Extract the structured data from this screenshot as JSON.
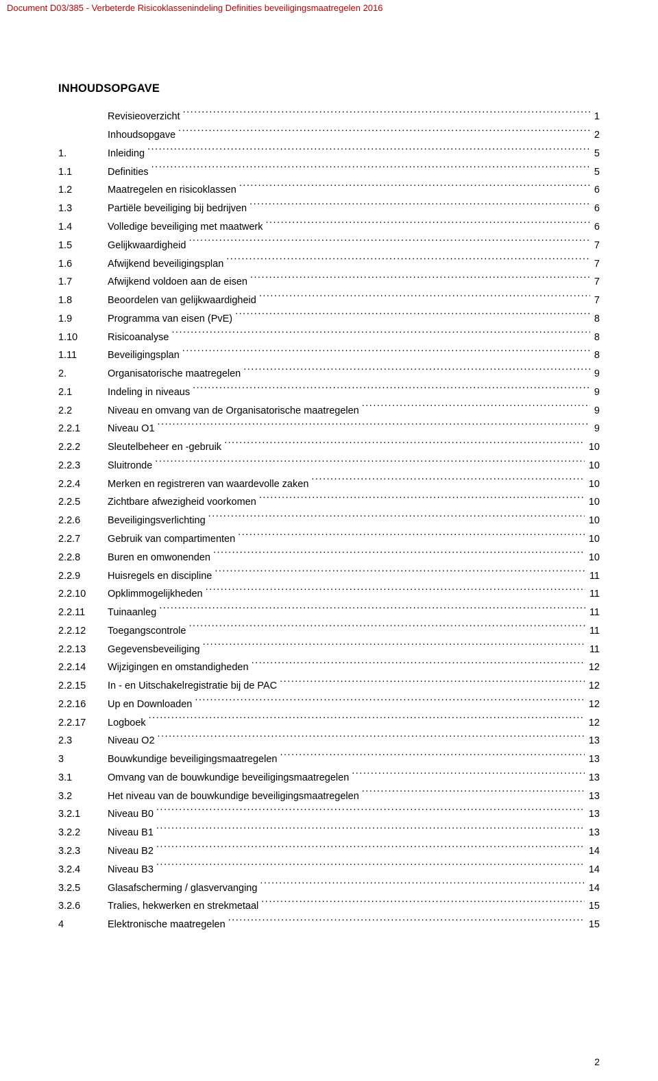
{
  "doc": {
    "header_text": "Document D03/385 - Verbeterde Risicoklassenindeling Definities beveiligingsmaatregelen 2016",
    "header_color": "#c00000",
    "page_number": "2",
    "main_heading": "INHOUDSOPGAVE",
    "text_color": "#000000",
    "background_color": "#ffffff",
    "font_family": "Verdana",
    "body_font_size_pt": 11,
    "line_height": 1.75
  },
  "toc": {
    "entries": [
      {
        "num": "",
        "label": "Revisieoverzicht",
        "page": "1"
      },
      {
        "num": "",
        "label": "Inhoudsopgave",
        "page": "2"
      },
      {
        "num": "1.",
        "label": "Inleiding",
        "page": "5"
      },
      {
        "num": "1.1",
        "label": "Definities",
        "page": "5"
      },
      {
        "num": "1.2",
        "label": "Maatregelen en risicoklassen",
        "page": "6"
      },
      {
        "num": "1.3",
        "label": "Partiële beveiliging bij bedrijven",
        "page": "6"
      },
      {
        "num": "1.4",
        "label": "Volledige beveiliging met maatwerk",
        "page": "6"
      },
      {
        "num": "1.5",
        "label": "Gelijkwaardigheid",
        "page": "7"
      },
      {
        "num": "1.6",
        "label": "Afwijkend beveiligingsplan",
        "page": "7"
      },
      {
        "num": "1.7",
        "label": "Afwijkend voldoen aan de eisen",
        "page": "7"
      },
      {
        "num": "1.8",
        "label": "Beoordelen van gelijkwaardigheid",
        "page": "7"
      },
      {
        "num": "1.9",
        "label": "Programma van eisen (PvE)",
        "page": "8"
      },
      {
        "num": "1.10",
        "label": "Risicoanalyse",
        "page": "8"
      },
      {
        "num": "1.11",
        "label": "Beveiligingsplan",
        "page": "8"
      },
      {
        "num": "2.",
        "label": "Organisatorische maatregelen",
        "page": "9"
      },
      {
        "num": "2.1",
        "label": "Indeling in niveaus",
        "page": "9"
      },
      {
        "num": "2.2",
        "label": "Niveau en omvang van de Organisatorische maatregelen",
        "page": "9"
      },
      {
        "num": "2.2.1",
        "label": "Niveau O1",
        "page": "9"
      },
      {
        "num": "2.2.2",
        "label": "Sleutelbeheer en -gebruik",
        "page": "10"
      },
      {
        "num": "2.2.3",
        "label": "Sluitronde",
        "page": "10"
      },
      {
        "num": "2.2.4",
        "label": "Merken en registreren van waardevolle zaken",
        "page": "10"
      },
      {
        "num": "2.2.5",
        "label": "Zichtbare afwezigheid voorkomen",
        "page": "10"
      },
      {
        "num": "2.2.6",
        "label": "Beveiligingsverlichting",
        "page": "10"
      },
      {
        "num": "2.2.7",
        "label": "Gebruik van compartimenten",
        "page": "10"
      },
      {
        "num": "2.2.8",
        "label": "Buren en omwonenden",
        "page": "10"
      },
      {
        "num": "2.2.9",
        "label": "Huisregels en discipline",
        "page": "11"
      },
      {
        "num": "2.2.10",
        "label": "Opklimmogelijkheden",
        "page": "11"
      },
      {
        "num": "2.2.11",
        "label": "Tuinaanleg",
        "page": "11"
      },
      {
        "num": "2.2.12",
        "label": "Toegangscontrole",
        "page": "11"
      },
      {
        "num": "2.2.13",
        "label": "Gegevensbeveiliging",
        "page": "11"
      },
      {
        "num": "2.2.14",
        "label": "Wijzigingen en omstandigheden",
        "page": "12"
      },
      {
        "num": "2.2.15",
        "label": "In - en Uitschakelregistratie bij de PAC",
        "page": "12"
      },
      {
        "num": "2.2.16",
        "label": "Up en Downloaden",
        "page": "12"
      },
      {
        "num": "2.2.17",
        "label": "Logboek",
        "page": "12"
      },
      {
        "num": "2.3",
        "label": "Niveau O2",
        "page": "13"
      },
      {
        "num": "3",
        "label": "Bouwkundige beveiligingsmaatregelen",
        "page": "13"
      },
      {
        "num": "3.1",
        "label": "Omvang van de bouwkundige beveiligingsmaatregelen",
        "page": "13"
      },
      {
        "num": "3.2",
        "label": "Het niveau van de bouwkundige beveiligingsmaatregelen",
        "page": "13"
      },
      {
        "num": "3.2.1",
        "label": "Niveau B0",
        "page": "13"
      },
      {
        "num": "3.2.2",
        "label": "Niveau B1",
        "page": "13"
      },
      {
        "num": "3.2.3",
        "label": "Niveau B2",
        "page": "14"
      },
      {
        "num": "3.2.4",
        "label": "Niveau B3",
        "page": "14"
      },
      {
        "num": "3.2.5",
        "label": "Glasafscherming / glasvervanging",
        "page": "14"
      },
      {
        "num": "3.2.6",
        "label": "Tralies, hekwerken en strekmetaal",
        "page": "15"
      },
      {
        "num": "4",
        "label": "Elektronische maatregelen",
        "page": "15"
      }
    ]
  }
}
